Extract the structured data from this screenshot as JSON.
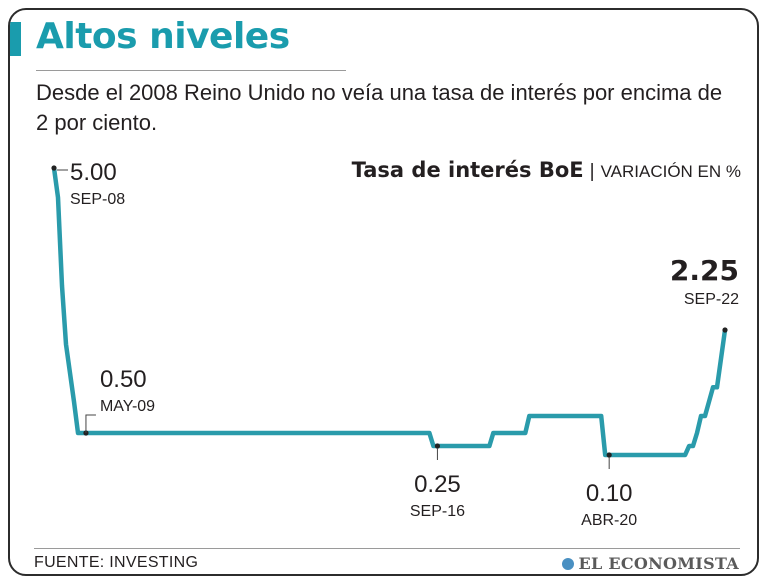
{
  "header": {
    "title": "Altos niveles",
    "subtitle": "Desde el 2008 Reino Unido no veía una tasa de interés por encima de 2 por ciento."
  },
  "chart_title": {
    "main": "Tasa de interés BoE",
    "separator": "|",
    "unit": "VARIACIÓN EN %"
  },
  "colors": {
    "accent": "#1a9cad",
    "line": "#2a9bab",
    "text": "#231f20"
  },
  "footer": {
    "source": "FUENTE: INVESTING",
    "brand": "EL ECONOMISTA"
  },
  "chart_data": {
    "type": "line",
    "title": "Tasa de interés BoE",
    "ylabel": "VARIACIÓN EN %",
    "x_range": [
      "2008-09",
      "2022-09"
    ],
    "series": [
      {
        "points": [
          {
            "x": "2008-09",
            "y": 5.0
          },
          {
            "x": "2008-10",
            "y": 4.5
          },
          {
            "x": "2008-11",
            "y": 3.0
          },
          {
            "x": "2008-12",
            "y": 2.0
          },
          {
            "x": "2009-01",
            "y": 1.5
          },
          {
            "x": "2009-02",
            "y": 1.0
          },
          {
            "x": "2009-03",
            "y": 0.5
          },
          {
            "x": "2016-07",
            "y": 0.5
          },
          {
            "x": "2016-08",
            "y": 0.25
          },
          {
            "x": "2017-10",
            "y": 0.25
          },
          {
            "x": "2017-11",
            "y": 0.5
          },
          {
            "x": "2018-07",
            "y": 0.5
          },
          {
            "x": "2018-08",
            "y": 0.75
          },
          {
            "x": "2020-02",
            "y": 0.75
          },
          {
            "x": "2020-03",
            "y": 0.1
          },
          {
            "x": "2021-11",
            "y": 0.1
          },
          {
            "x": "2021-12",
            "y": 0.25
          },
          {
            "x": "2022-01",
            "y": 0.25
          },
          {
            "x": "2022-02",
            "y": 0.5
          },
          {
            "x": "2022-03",
            "y": 0.75
          },
          {
            "x": "2022-04",
            "y": 0.75
          },
          {
            "x": "2022-05",
            "y": 1.0
          },
          {
            "x": "2022-06",
            "y": 1.25
          },
          {
            "x": "2022-07",
            "y": 1.25
          },
          {
            "x": "2022-08",
            "y": 1.75
          },
          {
            "x": "2022-09",
            "y": 2.25
          }
        ]
      }
    ],
    "annotations": [
      {
        "x": "2008-09",
        "y": 5.0,
        "value": "5.00",
        "date": "SEP-08"
      },
      {
        "x": "2009-05",
        "y": 0.5,
        "value": "0.50",
        "date": "MAY-09"
      },
      {
        "x": "2016-09",
        "y": 0.25,
        "value": "0.25",
        "date": "SEP-16"
      },
      {
        "x": "2020-04",
        "y": 0.1,
        "value": "0.10",
        "date": "ABR-20"
      },
      {
        "x": "2022-09",
        "y": 2.25,
        "value": "2.25",
        "date": "SEP-22"
      }
    ]
  }
}
